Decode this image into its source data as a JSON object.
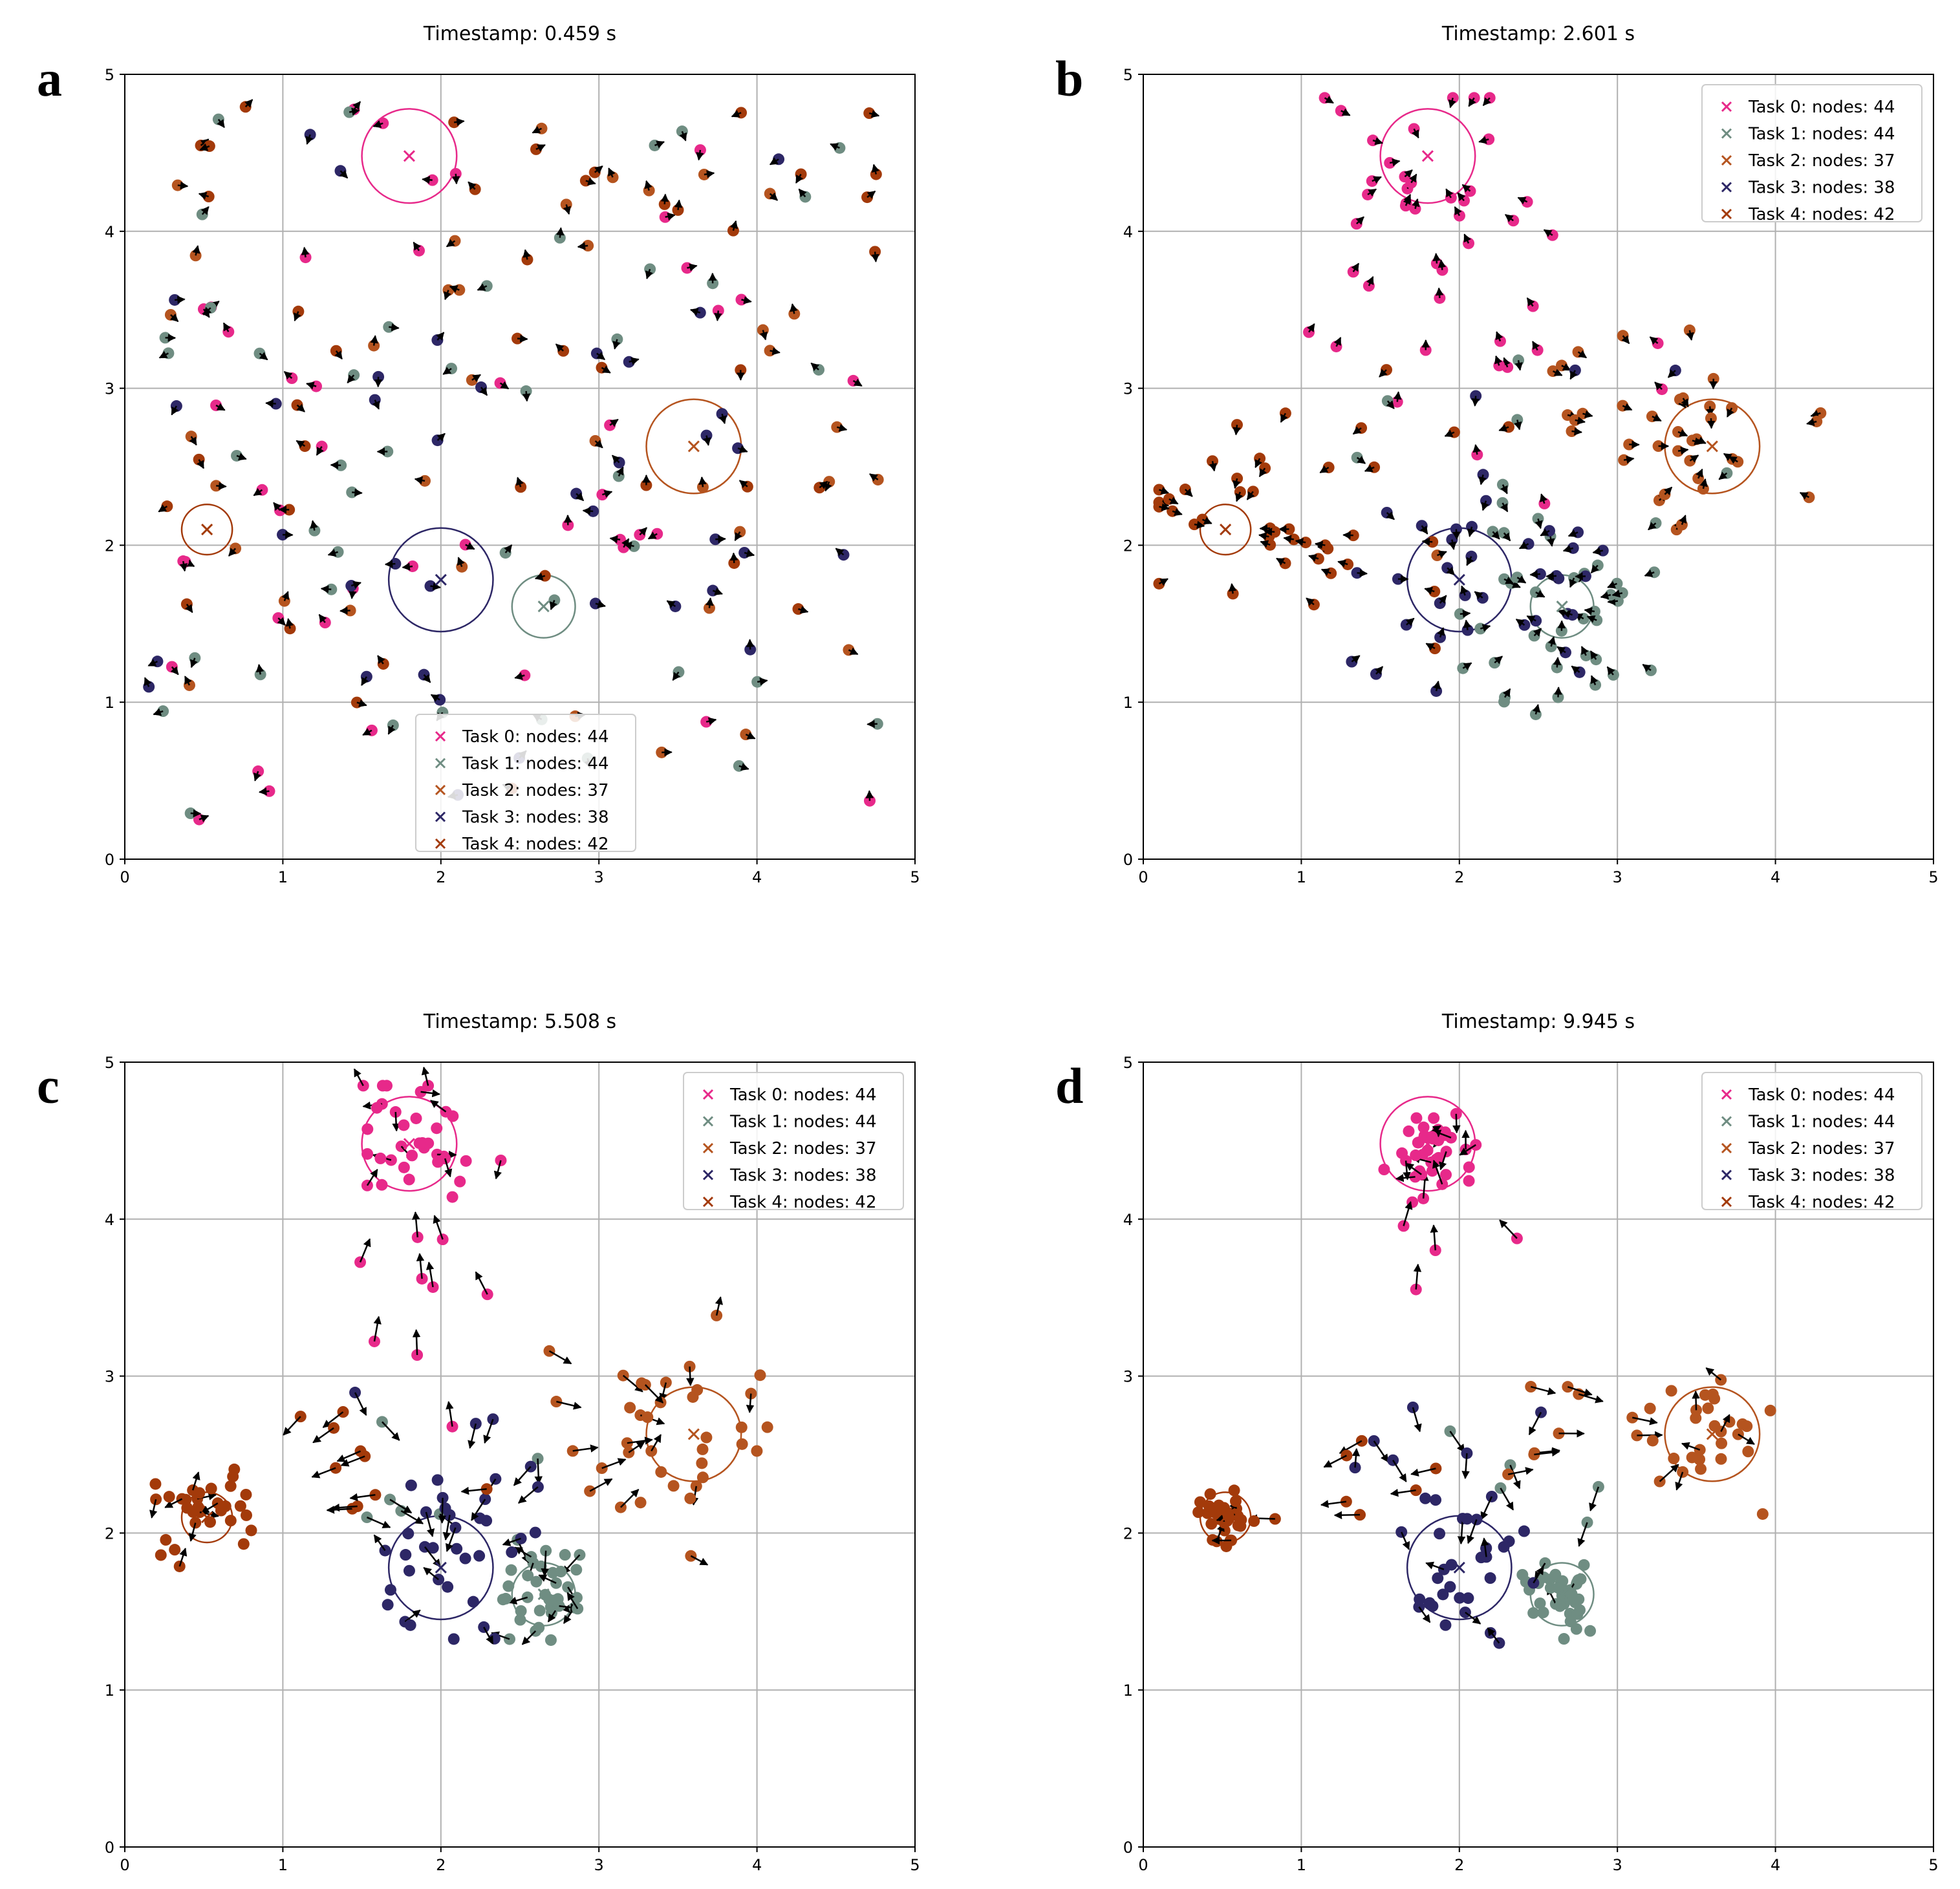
{
  "colors": {
    "task0": "#e7298a",
    "task1": "#6f8d82",
    "task2": "#b5541f",
    "task3": "#2d2766",
    "task4": "#a33a0a",
    "arrow": "#000000",
    "grid": "#b0b0b0"
  },
  "tasks": [
    {
      "label": "Task 0: nodes: 44",
      "center": [
        1.8,
        4.48
      ],
      "radius": 0.3
    },
    {
      "label": "Task 1: nodes: 44",
      "center": [
        2.65,
        1.61
      ],
      "radius": 0.2
    },
    {
      "label": "Task 2: nodes: 37",
      "center": [
        3.6,
        2.63
      ],
      "radius": 0.3
    },
    {
      "label": "Task 3: nodes: 38",
      "center": [
        2.0,
        1.78
      ],
      "radius": 0.33
    },
    {
      "label": "Task 4: nodes: 42",
      "center": [
        0.52,
        2.1
      ],
      "radius": 0.16
    }
  ],
  "chart_data": [
    {
      "type": "scatter",
      "panel_letter": "a",
      "title": "Timestamp: 0.459 s",
      "xlim": [
        0,
        5
      ],
      "ylim": [
        0,
        5
      ],
      "xticks": [
        "0",
        "1",
        "2",
        "3",
        "4",
        "5"
      ],
      "yticks": [
        "0",
        "1",
        "2",
        "3",
        "4",
        "5"
      ],
      "grid": true,
      "legend_position": "bottom-center",
      "mode": "random",
      "seed": 11
    },
    {
      "type": "scatter",
      "panel_letter": "b",
      "title": "Timestamp: 2.601 s",
      "xlim": [
        0,
        5
      ],
      "ylim": [
        0,
        5
      ],
      "xticks": [
        "0",
        "1",
        "2",
        "3",
        "4",
        "5"
      ],
      "yticks": [
        "0",
        "1",
        "2",
        "3",
        "4",
        "5"
      ],
      "grid": true,
      "legend_position": "top-right",
      "mode": "mid",
      "seed": 23
    },
    {
      "type": "scatter",
      "panel_letter": "c",
      "title": "Timestamp: 5.508 s",
      "xlim": [
        0,
        5
      ],
      "ylim": [
        0,
        5
      ],
      "xticks": [
        "0",
        "1",
        "2",
        "3",
        "4",
        "5"
      ],
      "yticks": [
        "0",
        "1",
        "2",
        "3",
        "4",
        "5"
      ],
      "grid": true,
      "legend_position": "top-right",
      "mode": "clustered",
      "seed": 37
    },
    {
      "type": "scatter",
      "panel_letter": "d",
      "title": "Timestamp: 9.945 s",
      "xlim": [
        0,
        5
      ],
      "ylim": [
        0,
        5
      ],
      "xticks": [
        "0",
        "1",
        "2",
        "3",
        "4",
        "5"
      ],
      "yticks": [
        "0",
        "1",
        "2",
        "3",
        "4",
        "5"
      ],
      "grid": true,
      "legend_position": "top-right",
      "mode": "converged",
      "seed": 53
    }
  ]
}
